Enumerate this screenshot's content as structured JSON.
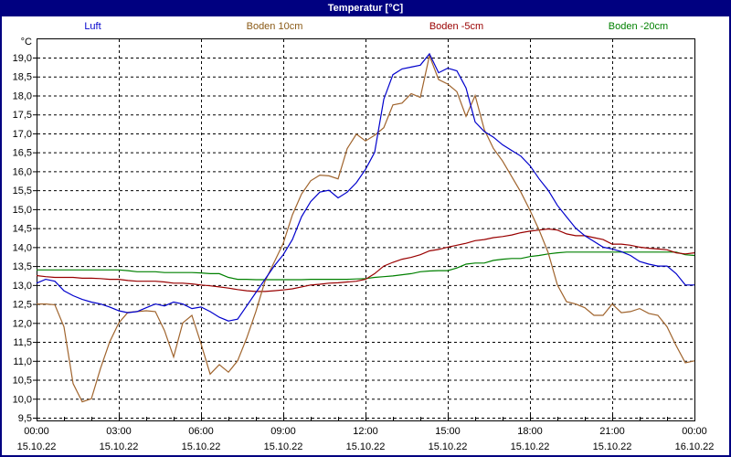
{
  "window": {
    "title": "Temperatur [°C]"
  },
  "legend": [
    {
      "label": "Luft",
      "color": "#0000cc"
    },
    {
      "label": "Boden 10cm",
      "color": "#8a5a16"
    },
    {
      "label": "Boden -5cm",
      "color": "#990000"
    },
    {
      "label": "Boden -20cm",
      "color": "#008000"
    }
  ],
  "chart_data": {
    "type": "line",
    "title": "Temperatur [°C]",
    "grid": "dashed",
    "legend_position": "top",
    "y_axis": {
      "unit_label": "°C",
      "ylim": [
        9.5,
        19.0
      ],
      "tick_step": 0.5,
      "ticks": [
        {
          "label": "19,0",
          "value": 19.0
        },
        {
          "label": "18,5",
          "value": 18.5
        },
        {
          "label": "18,0",
          "value": 18.0
        },
        {
          "label": "17,5",
          "value": 17.5
        },
        {
          "label": "17,0",
          "value": 17.0
        },
        {
          "label": "16,5",
          "value": 16.5
        },
        {
          "label": "16,0",
          "value": 16.0
        },
        {
          "label": "15,5",
          "value": 15.5
        },
        {
          "label": "15,0",
          "value": 15.0
        },
        {
          "label": "14,5",
          "value": 14.5
        },
        {
          "label": "14,0",
          "value": 14.0
        },
        {
          "label": "13,5",
          "value": 13.5
        },
        {
          "label": "13,0",
          "value": 13.0
        },
        {
          "label": "12,5",
          "value": 12.5
        },
        {
          "label": "12,0",
          "value": 12.0
        },
        {
          "label": "11,5",
          "value": 11.5
        },
        {
          "label": "11,0",
          "value": 11.0
        },
        {
          "label": "10,5",
          "value": 10.5
        },
        {
          "label": "10,0",
          "value": 10.0
        },
        {
          "label": "9,5",
          "value": 9.5
        }
      ]
    },
    "x_axis": {
      "range_hours": [
        0,
        24
      ],
      "major_tick_hours": 3,
      "minor_tick_hours": 1,
      "ticks": [
        {
          "time": "00:00",
          "date": "15.10.22"
        },
        {
          "time": "03:00",
          "date": "15.10.22"
        },
        {
          "time": "06:00",
          "date": "15.10.22"
        },
        {
          "time": "09:00",
          "date": "15.10.22"
        },
        {
          "time": "12:00",
          "date": "15.10.22"
        },
        {
          "time": "15:00",
          "date": "15.10.22"
        },
        {
          "time": "18:00",
          "date": "15.10.22"
        },
        {
          "time": "21:00",
          "date": "15.10.22"
        },
        {
          "time": "00:00",
          "date": "16.10.22"
        }
      ]
    },
    "sample_interval_minutes": 20,
    "series": [
      {
        "name": "Luft",
        "color": "#0000cc",
        "values": [
          13.05,
          13.15,
          13.1,
          12.85,
          12.72,
          12.62,
          12.55,
          12.5,
          12.42,
          12.32,
          12.27,
          12.3,
          12.4,
          12.5,
          12.45,
          12.55,
          12.5,
          12.38,
          12.42,
          12.3,
          12.15,
          12.05,
          12.1,
          12.45,
          12.8,
          13.15,
          13.5,
          13.8,
          14.2,
          14.8,
          15.2,
          15.45,
          15.5,
          15.3,
          15.45,
          15.7,
          16.05,
          16.5,
          17.9,
          18.55,
          18.7,
          18.75,
          18.8,
          19.1,
          18.6,
          18.72,
          18.65,
          18.2,
          17.3,
          17.05,
          16.9,
          16.7,
          16.55,
          16.4,
          16.15,
          15.8,
          15.5,
          15.1,
          14.8,
          14.5,
          14.3,
          14.15,
          14.0,
          13.95,
          13.88,
          13.78,
          13.62,
          13.55,
          13.5,
          13.5,
          13.3,
          13.0,
          13.0
        ]
      },
      {
        "name": "Boden 10cm",
        "color": "#a0642d",
        "values": [
          12.5,
          12.5,
          12.48,
          11.9,
          10.4,
          9.92,
          10.0,
          10.8,
          11.5,
          12.0,
          12.28,
          12.3,
          12.32,
          12.3,
          11.8,
          11.1,
          12.0,
          12.2,
          11.45,
          10.65,
          10.9,
          10.7,
          11.0,
          11.6,
          12.3,
          13.1,
          13.6,
          14.1,
          14.85,
          15.4,
          15.75,
          15.9,
          15.88,
          15.8,
          16.6,
          16.98,
          16.8,
          16.95,
          17.15,
          17.75,
          17.8,
          18.05,
          17.95,
          19.05,
          18.42,
          18.3,
          18.1,
          17.45,
          18.0,
          17.1,
          16.6,
          16.27,
          15.86,
          15.45,
          14.97,
          14.45,
          13.85,
          13.0,
          12.56,
          12.5,
          12.4,
          12.2,
          12.2,
          12.5,
          12.27,
          12.3,
          12.38,
          12.25,
          12.2,
          11.9,
          11.4,
          10.95,
          11.0
        ]
      },
      {
        "name": "Boden -5cm",
        "color": "#990000",
        "values": [
          13.25,
          13.22,
          13.2,
          13.2,
          13.2,
          13.18,
          13.18,
          13.17,
          13.15,
          13.15,
          13.12,
          13.1,
          13.1,
          13.1,
          13.08,
          13.05,
          13.05,
          13.03,
          13.0,
          12.98,
          12.95,
          12.92,
          12.88,
          12.85,
          12.83,
          12.83,
          12.85,
          12.87,
          12.9,
          12.95,
          13.0,
          13.02,
          13.05,
          13.06,
          13.08,
          13.1,
          13.15,
          13.3,
          13.5,
          13.6,
          13.68,
          13.73,
          13.8,
          13.9,
          13.94,
          14.0,
          14.05,
          14.1,
          14.17,
          14.2,
          14.25,
          14.28,
          14.32,
          14.38,
          14.42,
          14.45,
          14.48,
          14.45,
          14.35,
          14.3,
          14.3,
          14.25,
          14.2,
          14.08,
          14.08,
          14.05,
          14.0,
          13.97,
          13.95,
          13.93,
          13.85,
          13.82,
          13.85
        ]
      },
      {
        "name": "Boden -20cm",
        "color": "#008000",
        "values": [
          13.4,
          13.4,
          13.4,
          13.4,
          13.4,
          13.4,
          13.4,
          13.4,
          13.4,
          13.4,
          13.38,
          13.35,
          13.35,
          13.35,
          13.33,
          13.33,
          13.33,
          13.33,
          13.32,
          13.3,
          13.3,
          13.2,
          13.15,
          13.15,
          13.14,
          13.14,
          13.14,
          13.14,
          13.14,
          13.14,
          13.15,
          13.15,
          13.15,
          13.15,
          13.15,
          13.16,
          13.17,
          13.2,
          13.22,
          13.24,
          13.27,
          13.3,
          13.35,
          13.37,
          13.38,
          13.38,
          13.45,
          13.55,
          13.58,
          13.58,
          13.65,
          13.68,
          13.7,
          13.7,
          13.75,
          13.78,
          13.82,
          13.85,
          13.87,
          13.87,
          13.87,
          13.87,
          13.87,
          13.87,
          13.87,
          13.87,
          13.87,
          13.87,
          13.87,
          13.87,
          13.87,
          13.8,
          13.78
        ]
      }
    ]
  }
}
